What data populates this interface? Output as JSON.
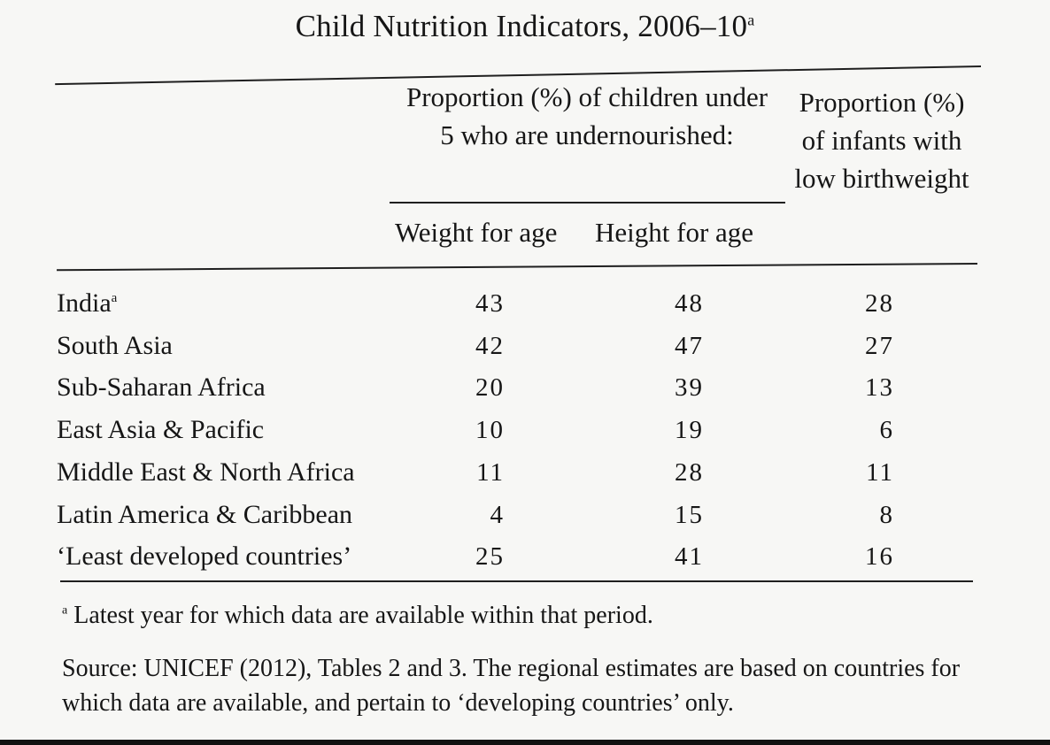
{
  "title": {
    "text": "Child Nutrition Indicators, 2006–10",
    "marker": "a"
  },
  "headers": {
    "group": "Proportion (%) of children under 5 who are undernourished:",
    "weight_for_age": "Weight for age",
    "height_for_age": "Height for age",
    "low_birthweight": "Proportion (%) of infants with low birthweight"
  },
  "rows": [
    {
      "region": "India",
      "marker": "a",
      "weight": "43",
      "height": "48",
      "birth": "28"
    },
    {
      "region": "South Asia",
      "marker": "",
      "weight": "42",
      "height": "47",
      "birth": "27"
    },
    {
      "region": "Sub-Saharan Africa",
      "marker": "",
      "weight": "20",
      "height": "39",
      "birth": "13"
    },
    {
      "region": "East Asia & Pacific",
      "marker": "",
      "weight": "10",
      "height": "19",
      "birth": "6"
    },
    {
      "region": "Middle East & North Africa",
      "marker": "",
      "weight": "11",
      "height": "28",
      "birth": "11"
    },
    {
      "region": "Latin America & Caribbean",
      "marker": "",
      "weight": "4",
      "height": "15",
      "birth": "8"
    },
    {
      "region": "‘Least developed countries’",
      "marker": "",
      "weight": "25",
      "height": "41",
      "birth": "16"
    }
  ],
  "footnote": {
    "marker": "a",
    "text": "Latest year for which data are available within that period."
  },
  "source": "Source: UNICEF (2012), Tables 2 and 3. The regional estimates are based on countries for which data are available, and pertain to ‘developing countries’ only."
}
